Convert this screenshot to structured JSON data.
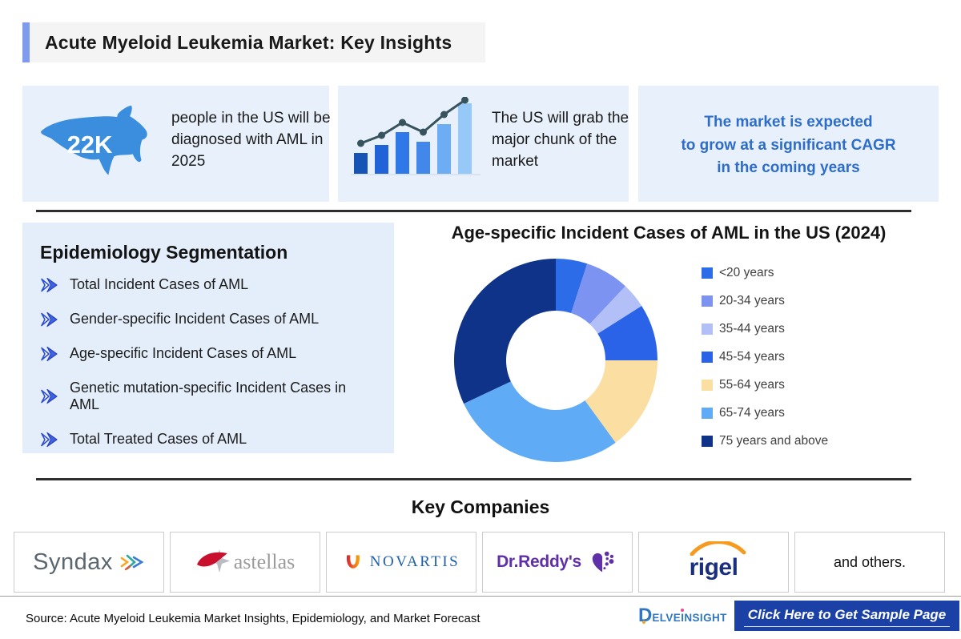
{
  "title": "Acute Myeloid Leukemia Market: Key Insights",
  "colors": {
    "accent_bar": "#7e9bee",
    "card_bg": "#e8f1fb",
    "panel_bg": "#e4eefb",
    "highlight_blue": "#2d6dc9",
    "map_blue": "#3b8ede",
    "button_bg": "#1b41a7",
    "brand_blue": "#3076c0"
  },
  "stats": {
    "us_diagnosed": {
      "value": "22K",
      "text": "people in the US will be diagnosed with AML in 2025"
    },
    "market_share": {
      "text": "The US will grab the major chunk of the market"
    },
    "cagr": {
      "lines": [
        "The market is expected",
        "to grow at a significant CAGR",
        "in the coming years"
      ]
    }
  },
  "epidemiology": {
    "title": "Epidemiology Segmentation",
    "items": [
      "Total Incident Cases of AML",
      "Gender-specific Incident Cases of AML",
      "Age-specific Incident Cases of AML",
      "Genetic mutation-specific Incident Cases in AML",
      "Total Treated Cases of AML"
    ]
  },
  "chart_data": {
    "type": "pie",
    "donut": true,
    "title": "Age-specific Incident Cases of AML in the US (2024)",
    "legend_position": "right",
    "unit": "approx % share of incident cases, estimated from arc angles",
    "segments": [
      {
        "label": "<20 years",
        "value": 5,
        "color": "#2d6ce8"
      },
      {
        "label": "20-34 years",
        "value": 7,
        "color": "#7d93f2"
      },
      {
        "label": "35-44 years",
        "value": 4,
        "color": "#b3c0f7"
      },
      {
        "label": "45-54 years",
        "value": 9,
        "color": "#2b63e8"
      },
      {
        "label": "55-64 years",
        "value": 15,
        "color": "#fbdfa2"
      },
      {
        "label": "65-74 years",
        "value": 28,
        "color": "#5fabf5"
      },
      {
        "label": "75 years and above",
        "value": 32,
        "color": "#10338a"
      }
    ]
  },
  "companies": {
    "title": "Key Companies",
    "items": [
      {
        "name": "Syndax",
        "label": "Syndax"
      },
      {
        "name": "Astellas",
        "label": "astellas"
      },
      {
        "name": "Novartis",
        "label": "NOVARTIS"
      },
      {
        "name": "Dr. Reddy's",
        "label": "Dr.Reddy's"
      },
      {
        "name": "Rigel",
        "label": "rigel"
      },
      {
        "name": "and others",
        "label": "and others."
      }
    ]
  },
  "footer": {
    "source": "Source: Acute Myeloid Leukemia Market Insights, Epidemiology, and Market Forecast",
    "brand_parts": [
      "D",
      "ELVE",
      "I",
      "NSIGHT"
    ],
    "button_label": "Click Here to Get Sample Page"
  }
}
